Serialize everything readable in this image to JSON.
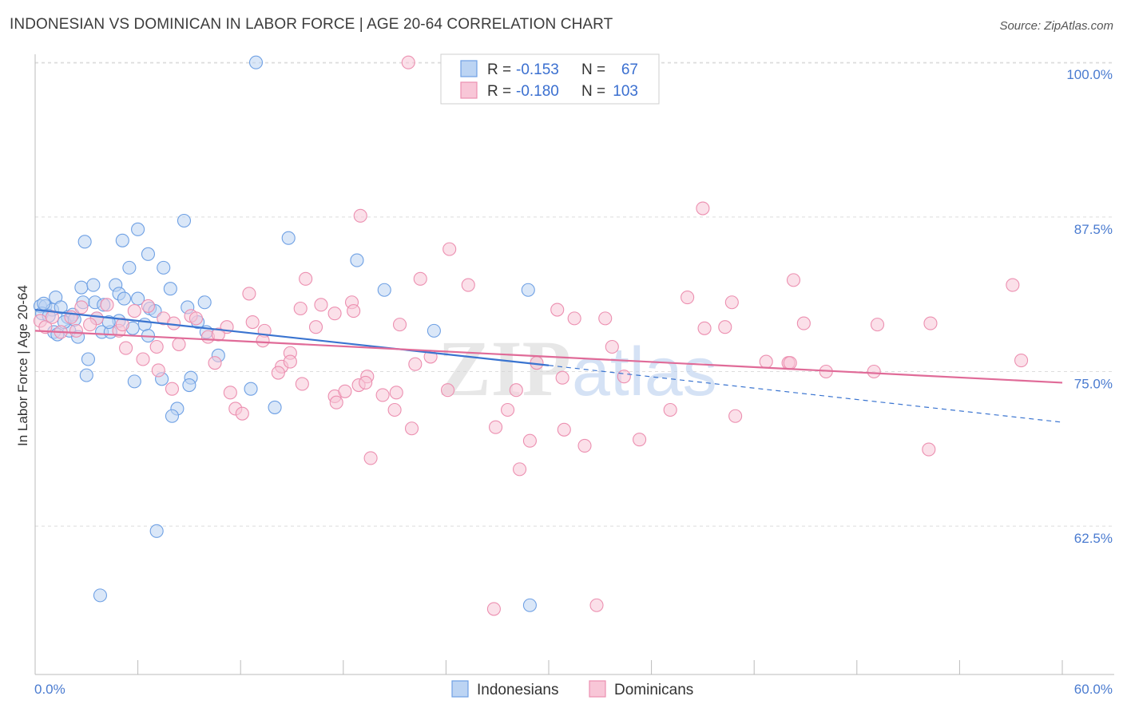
{
  "title": "INDONESIAN VS DOMINICAN IN LABOR FORCE | AGE 20-64 CORRELATION CHART",
  "source": "Source: ZipAtlas.com",
  "chart_data": {
    "type": "scatter",
    "title": "INDONESIAN VS DOMINICAN IN LABOR FORCE | AGE 20-64 CORRELATION CHART",
    "xlabel": "",
    "ylabel": "In Labor Force | Age 20-64",
    "xlim": [
      0,
      60
    ],
    "ylim": [
      50.5,
      101.5
    ],
    "x_tick_labels": [
      "0.0%",
      "60.0%"
    ],
    "y_ticks": [
      62.5,
      75.0,
      87.5,
      100.0
    ],
    "y_tick_labels": [
      "62.5%",
      "75.0%",
      "87.5%",
      "100.0%"
    ],
    "grid": "horizontal dashed",
    "watermark": "ZIPatlas",
    "legend_position": "top-center",
    "stats": [
      {
        "series": "Indonesians",
        "r_label": "R =",
        "r_value": "-0.153",
        "n_label": "N =",
        "n_value": "67"
      },
      {
        "series": "Dominicans",
        "r_label": "R =",
        "r_value": "-0.180",
        "n_label": "N =",
        "n_value": "103"
      }
    ],
    "series": [
      {
        "name": "Indonesians",
        "color": "#6ea0e4",
        "fill": "#bcd4f3",
        "line_color": "#3a74d0",
        "trend": {
          "x0": 0.0,
          "y0": 80.0,
          "x1": 30.0,
          "y1": 75.5,
          "dashed_to_x": 60.0,
          "dashed_to_y": 70.9
        },
        "points": [
          [
            12.9,
            100.0
          ],
          [
            3.8,
            56.9
          ],
          [
            28.9,
            56.1
          ],
          [
            7.1,
            62.1
          ],
          [
            2.9,
            85.5
          ],
          [
            5.1,
            85.6
          ],
          [
            6.0,
            86.5
          ],
          [
            8.7,
            87.2
          ],
          [
            14.8,
            85.8
          ],
          [
            18.8,
            84.0
          ],
          [
            6.6,
            84.5
          ],
          [
            5.5,
            83.4
          ],
          [
            7.5,
            83.4
          ],
          [
            20.4,
            81.6
          ],
          [
            28.8,
            81.6
          ],
          [
            2.7,
            81.8
          ],
          [
            3.4,
            82.0
          ],
          [
            4.7,
            82.0
          ],
          [
            7.9,
            81.7
          ],
          [
            4.9,
            81.3
          ],
          [
            1.2,
            81.0
          ],
          [
            2.8,
            80.6
          ],
          [
            3.5,
            80.6
          ],
          [
            5.2,
            80.9
          ],
          [
            6.0,
            80.9
          ],
          [
            9.9,
            80.6
          ],
          [
            0.3,
            80.3
          ],
          [
            0.6,
            80.3
          ],
          [
            1.0,
            80.0
          ],
          [
            1.5,
            80.2
          ],
          [
            6.7,
            80.1
          ],
          [
            8.9,
            80.2
          ],
          [
            0.4,
            79.7
          ],
          [
            0.8,
            79.5
          ],
          [
            1.9,
            79.4
          ],
          [
            2.2,
            79.6
          ],
          [
            3.6,
            79.3
          ],
          [
            4.9,
            79.1
          ],
          [
            1.1,
            78.2
          ],
          [
            2.0,
            78.3
          ],
          [
            3.9,
            78.2
          ],
          [
            4.4,
            78.2
          ],
          [
            6.4,
            78.8
          ],
          [
            6.6,
            77.9
          ],
          [
            10.0,
            78.2
          ],
          [
            1.3,
            78.0
          ],
          [
            2.5,
            77.8
          ],
          [
            4.3,
            79.0
          ],
          [
            3.1,
            76.0
          ],
          [
            10.7,
            76.3
          ],
          [
            23.3,
            78.3
          ],
          [
            3.0,
            74.7
          ],
          [
            5.8,
            74.2
          ],
          [
            7.4,
            74.4
          ],
          [
            9.1,
            74.5
          ],
          [
            9.0,
            73.9
          ],
          [
            12.6,
            73.6
          ],
          [
            8.3,
            72.0
          ],
          [
            8.0,
            71.4
          ],
          [
            14.0,
            72.1
          ],
          [
            0.5,
            80.5
          ],
          [
            1.7,
            79.0
          ],
          [
            2.3,
            79.2
          ],
          [
            4.0,
            80.4
          ],
          [
            5.7,
            78.5
          ],
          [
            7.0,
            79.9
          ],
          [
            9.5,
            79.0
          ]
        ]
      },
      {
        "name": "Dominicans",
        "color": "#ec8fb0",
        "fill": "#f8c6d7",
        "line_color": "#e06b98",
        "trend": {
          "x0": 0.0,
          "y0": 78.3,
          "x1": 60.0,
          "y1": 74.1
        },
        "points": [
          [
            21.8,
            100.0
          ],
          [
            26.8,
            55.8
          ],
          [
            32.8,
            56.1
          ],
          [
            19.0,
            87.6
          ],
          [
            39.0,
            88.2
          ],
          [
            24.2,
            84.9
          ],
          [
            15.8,
            82.5
          ],
          [
            22.5,
            82.5
          ],
          [
            25.3,
            82.0
          ],
          [
            44.3,
            82.4
          ],
          [
            57.1,
            82.0
          ],
          [
            12.5,
            81.3
          ],
          [
            38.1,
            81.0
          ],
          [
            40.7,
            80.6
          ],
          [
            15.5,
            80.1
          ],
          [
            16.7,
            80.4
          ],
          [
            17.5,
            79.7
          ],
          [
            18.5,
            80.6
          ],
          [
            18.6,
            79.9
          ],
          [
            30.5,
            80.0
          ],
          [
            2.1,
            79.4
          ],
          [
            2.7,
            80.2
          ],
          [
            3.6,
            79.3
          ],
          [
            4.2,
            80.4
          ],
          [
            5.8,
            79.9
          ],
          [
            6.6,
            80.3
          ],
          [
            7.5,
            79.3
          ],
          [
            8.1,
            78.9
          ],
          [
            9.1,
            79.5
          ],
          [
            9.4,
            79.3
          ],
          [
            11.2,
            78.6
          ],
          [
            12.7,
            79.0
          ],
          [
            0.3,
            79.1
          ],
          [
            0.6,
            78.6
          ],
          [
            1.0,
            79.4
          ],
          [
            1.5,
            78.2
          ],
          [
            2.4,
            78.3
          ],
          [
            3.2,
            78.8
          ],
          [
            4.9,
            78.3
          ],
          [
            5.1,
            78.8
          ],
          [
            8.4,
            77.2
          ],
          [
            10.1,
            77.8
          ],
          [
            10.7,
            78.0
          ],
          [
            13.4,
            78.3
          ],
          [
            21.3,
            78.8
          ],
          [
            31.5,
            79.3
          ],
          [
            33.3,
            79.3
          ],
          [
            39.1,
            78.5
          ],
          [
            40.3,
            78.6
          ],
          [
            44.9,
            78.9
          ],
          [
            49.2,
            78.8
          ],
          [
            52.3,
            78.9
          ],
          [
            7.1,
            77.0
          ],
          [
            13.3,
            77.5
          ],
          [
            14.9,
            76.5
          ],
          [
            33.7,
            77.0
          ],
          [
            6.3,
            76.0
          ],
          [
            10.5,
            75.7
          ],
          [
            14.4,
            75.4
          ],
          [
            14.2,
            74.9
          ],
          [
            14.9,
            75.8
          ],
          [
            19.4,
            74.6
          ],
          [
            22.2,
            75.6
          ],
          [
            23.1,
            76.2
          ],
          [
            29.3,
            75.7
          ],
          [
            34.4,
            74.6
          ],
          [
            42.7,
            75.8
          ],
          [
            44.0,
            75.7
          ],
          [
            44.1,
            75.7
          ],
          [
            46.2,
            75.0
          ],
          [
            49.0,
            75.0
          ],
          [
            57.6,
            75.9
          ],
          [
            7.2,
            75.1
          ],
          [
            8.0,
            73.6
          ],
          [
            11.4,
            73.3
          ],
          [
            15.6,
            74.0
          ],
          [
            17.5,
            73.0
          ],
          [
            18.1,
            73.4
          ],
          [
            18.9,
            73.9
          ],
          [
            20.3,
            73.1
          ],
          [
            21.1,
            73.3
          ],
          [
            24.1,
            73.5
          ],
          [
            28.1,
            73.5
          ],
          [
            11.7,
            72.0
          ],
          [
            12.1,
            71.6
          ],
          [
            17.6,
            72.5
          ],
          [
            27.6,
            71.9
          ],
          [
            37.1,
            71.9
          ],
          [
            40.9,
            71.4
          ],
          [
            22.0,
            70.4
          ],
          [
            26.9,
            70.5
          ],
          [
            30.9,
            70.3
          ],
          [
            28.9,
            69.4
          ],
          [
            32.1,
            69.0
          ],
          [
            35.3,
            69.5
          ],
          [
            52.2,
            68.7
          ],
          [
            19.6,
            68.0
          ],
          [
            28.3,
            67.1
          ],
          [
            30.8,
            74.5
          ],
          [
            16.4,
            78.6
          ],
          [
            5.3,
            76.9
          ],
          [
            19.3,
            74.1
          ],
          [
            21.0,
            71.9
          ]
        ]
      }
    ]
  },
  "legend": {
    "items": [
      {
        "label": "Indonesians"
      },
      {
        "label": "Dominicans"
      }
    ]
  }
}
